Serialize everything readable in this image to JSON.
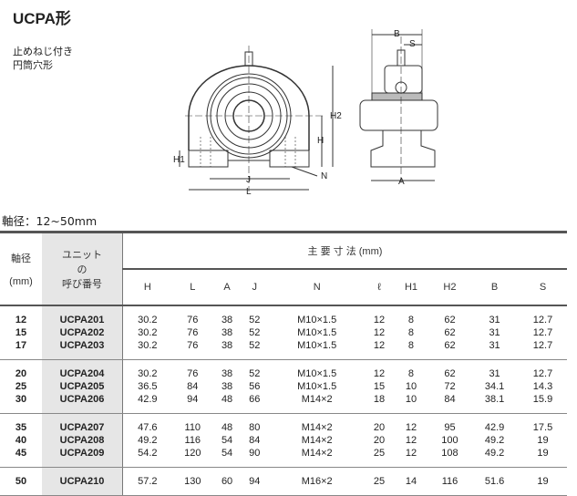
{
  "title": "UCPA形",
  "subtitle": [
    "止めねじ付き",
    "円筒穴形"
  ],
  "drawing_labels": {
    "B": "B",
    "S": "S",
    "H2": "H2",
    "H": "H",
    "H1": "H1",
    "J": "J",
    "L": "L",
    "N": "N",
    "A": "A"
  },
  "shaft_range": "軸径：12~50mm",
  "table": {
    "head": {
      "shaft": "軸径",
      "shaft_unit": "(mm)",
      "unit_top": "ユニット",
      "unit_mid": "の",
      "unit_bot": "呼び番号",
      "dims": "主 要 寸 法 (mm)"
    },
    "columns": [
      "H",
      "L",
      "A",
      "J",
      "N",
      "ℓ",
      "H1",
      "H2",
      "B",
      "S"
    ],
    "groups": [
      [
        [
          "12",
          "UCPA201",
          "30.2",
          "76",
          "38",
          "52",
          "M10×1.5",
          "12",
          "8",
          "62",
          "31",
          "12.7"
        ],
        [
          "15",
          "UCPA202",
          "30.2",
          "76",
          "38",
          "52",
          "M10×1.5",
          "12",
          "8",
          "62",
          "31",
          "12.7"
        ],
        [
          "17",
          "UCPA203",
          "30.2",
          "76",
          "38",
          "52",
          "M10×1.5",
          "12",
          "8",
          "62",
          "31",
          "12.7"
        ]
      ],
      [
        [
          "20",
          "UCPA204",
          "30.2",
          "76",
          "38",
          "52",
          "M10×1.5",
          "12",
          "8",
          "62",
          "31",
          "12.7"
        ],
        [
          "25",
          "UCPA205",
          "36.5",
          "84",
          "38",
          "56",
          "M10×1.5",
          "15",
          "10",
          "72",
          "34.1",
          "14.3"
        ],
        [
          "30",
          "UCPA206",
          "42.9",
          "94",
          "48",
          "66",
          "M14×2",
          "18",
          "10",
          "84",
          "38.1",
          "15.9"
        ]
      ],
      [
        [
          "35",
          "UCPA207",
          "47.6",
          "110",
          "48",
          "80",
          "M14×2",
          "20",
          "12",
          "95",
          "42.9",
          "17.5"
        ],
        [
          "40",
          "UCPA208",
          "49.2",
          "116",
          "54",
          "84",
          "M14×2",
          "20",
          "12",
          "100",
          "49.2",
          "19"
        ],
        [
          "45",
          "UCPA209",
          "54.2",
          "120",
          "54",
          "90",
          "M14×2",
          "25",
          "12",
          "108",
          "49.2",
          "19"
        ]
      ],
      [
        [
          "50",
          "UCPA210",
          "57.2",
          "130",
          "60",
          "94",
          "M16×2",
          "25",
          "14",
          "116",
          "51.6",
          "19"
        ]
      ]
    ]
  }
}
